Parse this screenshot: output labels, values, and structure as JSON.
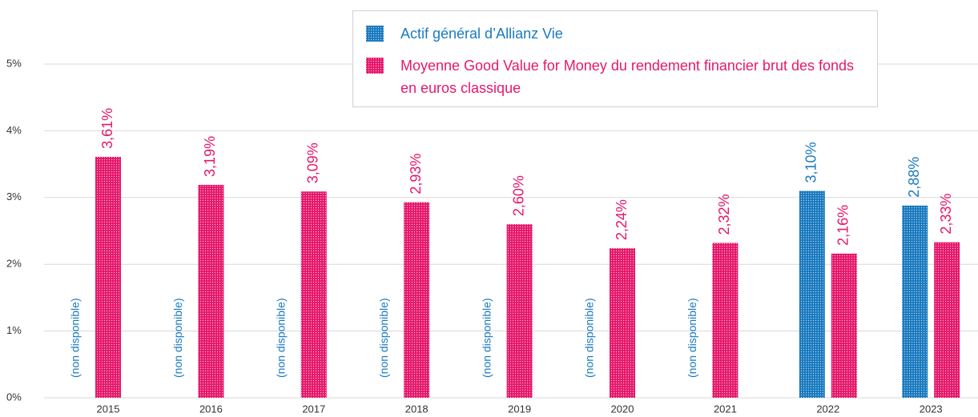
{
  "chart_data": {
    "type": "bar",
    "categories": [
      "2015",
      "2016",
      "2017",
      "2018",
      "2019",
      "2020",
      "2021",
      "2022",
      "2023"
    ],
    "series": [
      {
        "name": "Actif général d’Allianz Vie",
        "color": "#1a7abf",
        "values": [
          null,
          null,
          null,
          null,
          null,
          null,
          null,
          3.1,
          2.88
        ],
        "value_labels": [
          "(non disponible)",
          "(non disponible)",
          "(non disponible)",
          "(non disponible)",
          "(non disponible)",
          "(non disponible)",
          "(non disponible)",
          "3,10%",
          "2,88%"
        ]
      },
      {
        "name": "Moyenne Good Value for Money du rendement financier brut des fonds en euros classique",
        "color": "#e6186b",
        "values": [
          3.61,
          3.19,
          3.09,
          2.93,
          2.6,
          2.24,
          2.32,
          2.16,
          2.33
        ],
        "value_labels": [
          "3,61%",
          "3,19%",
          "3,09%",
          "2,93%",
          "2,60%",
          "2,24%",
          "2,32%",
          "2,16%",
          "2,33%"
        ]
      }
    ],
    "ylim": [
      0,
      5
    ],
    "yticks": [
      {
        "value": 0,
        "label": "0%"
      },
      {
        "value": 1,
        "label": "1%"
      },
      {
        "value": 2,
        "label": "2%"
      },
      {
        "value": 3,
        "label": "3%"
      },
      {
        "value": 4,
        "label": "4%"
      },
      {
        "value": 5,
        "label": "5%"
      }
    ],
    "grid": true,
    "legend": "top"
  }
}
